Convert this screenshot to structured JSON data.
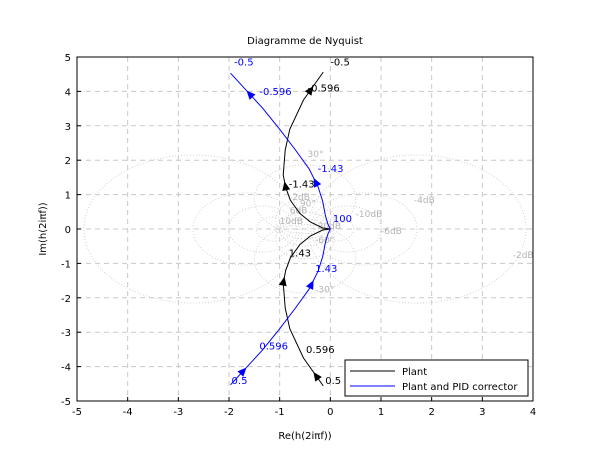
{
  "chart_data": {
    "type": "line",
    "title": "Diagramme de Nyquist",
    "xlabel": "Re(h(2iπf))",
    "ylabel": "Im(h(2iπf))",
    "xlim": [
      -5,
      4
    ],
    "ylim": [
      -5,
      5
    ],
    "xticks": [
      -5,
      -4,
      -3,
      -2,
      -1,
      0,
      1,
      2,
      3,
      4
    ],
    "yticks": [
      -5,
      -4,
      -3,
      -2,
      -1,
      0,
      1,
      2,
      3,
      4,
      5
    ],
    "grid": true,
    "legend_position": "bottom-right",
    "series": [
      {
        "name": "Plant",
        "color": "#000000",
        "x": [
          -0.14,
          -0.53,
          -0.8,
          -0.89,
          -0.93,
          -0.88,
          -0.79,
          -0.6,
          -0.39,
          -0.15,
          0.0
        ],
        "y": [
          4.56,
          3.75,
          2.9,
          2.3,
          1.57,
          1.2,
          0.84,
          0.45,
          0.2,
          0.03,
          0.0
        ],
        "mirror": true,
        "labels": [
          {
            "text": "-0.5",
            "x": 0.0,
            "y": 4.75
          },
          {
            "text": "-0.596",
            "x": -0.45,
            "y": 4.0
          },
          {
            "text": "-1.43",
            "x": -0.82,
            "y": 1.2
          },
          {
            "text": "1.43",
            "x": -0.82,
            "y": -0.8
          },
          {
            "text": "0.596",
            "x": -0.48,
            "y": -3.6
          },
          {
            "text": "0.5",
            "x": -0.1,
            "y": -4.5
          }
        ]
      },
      {
        "name": "Plant and PID corrector",
        "color": "#0000ff",
        "x": [
          -1.97,
          -1.34,
          -1.0,
          -0.69,
          -0.42,
          -0.24,
          -0.15,
          -0.1,
          -0.05,
          0.0
        ],
        "y": [
          4.53,
          3.52,
          2.9,
          2.3,
          1.75,
          1.22,
          0.8,
          0.41,
          0.15,
          0.0
        ],
        "mirror": true,
        "labels": [
          {
            "text": "-0.5",
            "x": -1.9,
            "y": 4.75
          },
          {
            "text": "-0.596",
            "x": -1.4,
            "y": 3.9
          },
          {
            "text": "-1.43",
            "x": -0.25,
            "y": 1.65
          },
          {
            "text": "100",
            "x": 0.05,
            "y": 0.2
          },
          {
            "text": "1.43",
            "x": -0.3,
            "y": -1.25
          },
          {
            "text": "0.596",
            "x": -1.4,
            "y": -3.5
          },
          {
            "text": "0.5",
            "x": -1.95,
            "y": -4.5
          }
        ]
      }
    ],
    "hall_grid": {
      "m_levels_db": [
        -2,
        -4,
        -6,
        -10,
        2,
        4,
        6,
        10,
        20
      ],
      "m_labels": [
        {
          "text": "-2dB",
          "x": 3.6,
          "y": -0.85
        },
        {
          "text": "-4dB",
          "x": 1.65,
          "y": 0.75
        },
        {
          "text": "-6dB",
          "x": 1.0,
          "y": -0.15
        },
        {
          "text": "-10dB",
          "x": 0.5,
          "y": 0.35
        },
        {
          "text": "2dB",
          "x": -0.75,
          "y": 0.85
        },
        {
          "text": "6dB",
          "x": -0.8,
          "y": 0.45
        },
        {
          "text": "10dB",
          "x": -1.0,
          "y": 0.15
        },
        {
          "text": "20dB",
          "x": -0.25,
          "y": 0.0
        }
      ],
      "n_labels": [
        {
          "text": "30°",
          "x": -0.45,
          "y": 2.1
        },
        {
          "text": "90°",
          "x": -0.6,
          "y": 0.65
        },
        {
          "text": "-60°",
          "x": -0.3,
          "y": -0.4
        },
        {
          "text": "-30°",
          "x": -0.3,
          "y": -1.85
        }
      ]
    }
  }
}
